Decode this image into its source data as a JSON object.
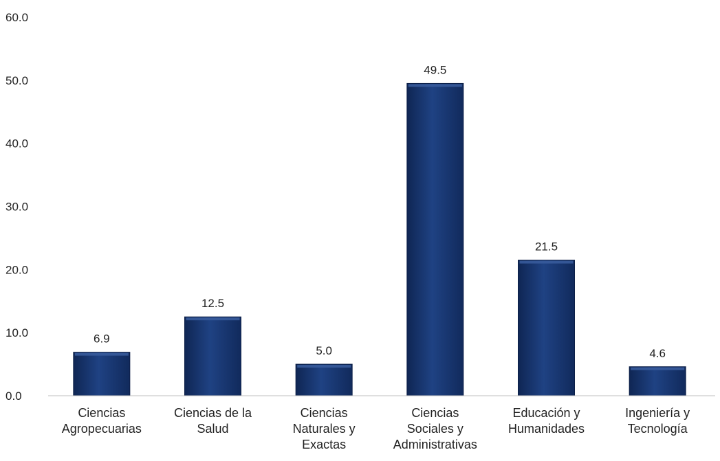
{
  "chart_data": {
    "type": "bar",
    "categories": [
      [
        "Ciencias",
        "Agropecuarias"
      ],
      [
        "Ciencias de la",
        "Salud"
      ],
      [
        "Ciencias",
        "Naturales y",
        "Exactas"
      ],
      [
        "Ciencias",
        "Sociales y",
        "Administrativas"
      ],
      [
        "Educación y",
        "Humanidades"
      ],
      [
        "Ingeniería y",
        "Tecnología"
      ]
    ],
    "values": [
      6.9,
      12.5,
      5.0,
      49.5,
      21.5,
      4.6
    ],
    "value_labels": [
      "6.9",
      "12.5",
      "5.0",
      "49.5",
      "21.5",
      "4.6"
    ],
    "ylim": [
      0,
      60
    ],
    "yticks": [
      "0.0",
      "10.0",
      "20.0",
      "30.0",
      "40.0",
      "50.0",
      "60.0"
    ],
    "bar_color": "#1c3c78",
    "bar_highlight": "#3a5d9e",
    "grid": false,
    "legend": "none"
  }
}
